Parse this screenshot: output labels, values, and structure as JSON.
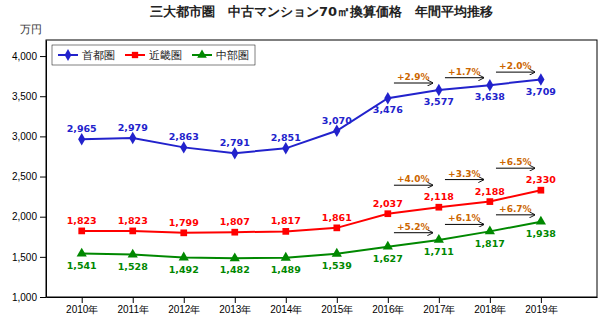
{
  "chart_data": {
    "type": "line",
    "title": "三大都市圏　中古マンション70㎡換算価格　年間平均推移",
    "ylabel": "万円",
    "x": [
      2010,
      2011,
      2012,
      2013,
      2014,
      2015,
      2016,
      2017,
      2018,
      2019
    ],
    "xlim": [
      2009.3,
      2020.1
    ],
    "xticks": [
      {
        "value": 2010,
        "label": "2010年"
      },
      {
        "value": 2011,
        "label": "2011年"
      },
      {
        "value": 2012,
        "label": "2012年"
      },
      {
        "value": 2013,
        "label": "2013年"
      },
      {
        "value": 2014,
        "label": "2014年"
      },
      {
        "value": 2015,
        "label": "2015年"
      },
      {
        "value": 2016,
        "label": "2016年"
      },
      {
        "value": 2017,
        "label": "2017年"
      },
      {
        "value": 2018,
        "label": "2018年"
      },
      {
        "value": 2019,
        "label": "2019年"
      }
    ],
    "ylim": [
      1000,
      4200
    ],
    "yticks": [
      {
        "value": 1000,
        "label": "1,000"
      },
      {
        "value": 1500,
        "label": "1,500"
      },
      {
        "value": 2000,
        "label": "2,000"
      },
      {
        "value": 2500,
        "label": "2,500"
      },
      {
        "value": 3000,
        "label": "3,000"
      },
      {
        "value": 3500,
        "label": "3,500"
      },
      {
        "value": 4000,
        "label": "4,000"
      }
    ],
    "grid": false,
    "legend": "upper left",
    "data_labels": true,
    "series": [
      {
        "name": "首都圏",
        "color": "#2222cc",
        "marker": "diamond",
        "values": [
          2965,
          2979,
          2863,
          2791,
          2851,
          3070,
          3476,
          3577,
          3638,
          3709
        ],
        "value_labels": [
          "2,965",
          "2,979",
          "2,863",
          "2,791",
          "2,851",
          "3,070",
          "3,476",
          "3,577",
          "3,638",
          "3,709"
        ]
      },
      {
        "name": "近畿圏",
        "color": "#ff0000",
        "marker": "square",
        "values": [
          1823,
          1823,
          1799,
          1807,
          1817,
          1861,
          2037,
          2118,
          2188,
          2330
        ],
        "value_labels": [
          "1,823",
          "1,823",
          "1,799",
          "1,807",
          "1,817",
          "1,861",
          "2,037",
          "2,118",
          "2,188",
          "2,330"
        ]
      },
      {
        "name": "中部圏",
        "color": "#008800",
        "marker": "triangle",
        "values": [
          1541,
          1528,
          1492,
          1482,
          1489,
          1539,
          1627,
          1711,
          1817,
          1938
        ],
        "value_labels": [
          "1,541",
          "1,528",
          "1,492",
          "1,482",
          "1,489",
          "1,539",
          "1,627",
          "1,711",
          "1,817",
          "1,938"
        ]
      }
    ],
    "annotations": [
      {
        "text": "+2.9%",
        "series": 0,
        "from": 2016,
        "to": 2017,
        "color": "#cc6600"
      },
      {
        "text": "+1.7%",
        "series": 0,
        "from": 2017,
        "to": 2018,
        "color": "#cc6600"
      },
      {
        "text": "+2.0%",
        "series": 0,
        "from": 2018,
        "to": 2019,
        "color": "#cc6600"
      },
      {
        "text": "+4.0%",
        "series": 1,
        "from": 2016,
        "to": 2017,
        "color": "#cc6600"
      },
      {
        "text": "+3.3%",
        "series": 1,
        "from": 2017,
        "to": 2018,
        "color": "#cc6600"
      },
      {
        "text": "+6.5%",
        "series": 1,
        "from": 2018,
        "to": 2019,
        "color": "#cc6600"
      },
      {
        "text": "+5.2%",
        "series": 2,
        "from": 2016,
        "to": 2017,
        "color": "#cc6600"
      },
      {
        "text": "+6.1%",
        "series": 2,
        "from": 2017,
        "to": 2018,
        "color": "#cc6600"
      },
      {
        "text": "+6.7%",
        "series": 2,
        "from": 2018,
        "to": 2019,
        "color": "#cc6600"
      }
    ]
  }
}
